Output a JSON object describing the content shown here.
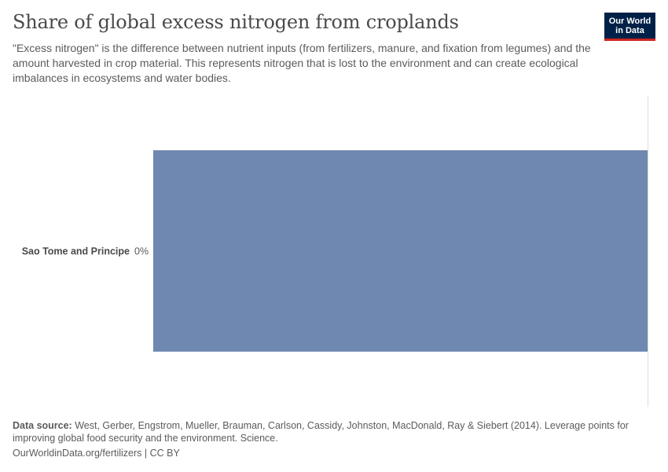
{
  "header": {
    "title": "Share of global excess nitrogen from croplands",
    "subtitle": "\"Excess nitrogen\" is the difference between nutrient inputs (from fertilizers, manure, and fixation from legumes) and the amount harvested in crop material. This represents nitrogen that is lost to the environment and can create ecological imbalances in ecosystems and water bodies."
  },
  "logo": {
    "line1": "Our World",
    "line2": "in Data"
  },
  "colors": {
    "bar": "#6f88b1",
    "axis": "#dddddd",
    "logo_bg": "#002147",
    "logo_accent": "#ce261e"
  },
  "chart_data": {
    "type": "bar",
    "orientation": "horizontal",
    "categories": [
      "Sao Tome and Principe"
    ],
    "values": [
      0
    ],
    "value_labels": [
      "0%"
    ],
    "unit": "%"
  },
  "footer": {
    "source_label": "Data source:",
    "source_text": "West, Gerber, Engstrom, Mueller, Brauman, Carlson, Cassidy, Johnston, MacDonald, Ray & Siebert (2014). Leverage points for improving global food security and the environment. Science.",
    "url_text": "OurWorldinData.org/fertilizers | CC BY"
  }
}
